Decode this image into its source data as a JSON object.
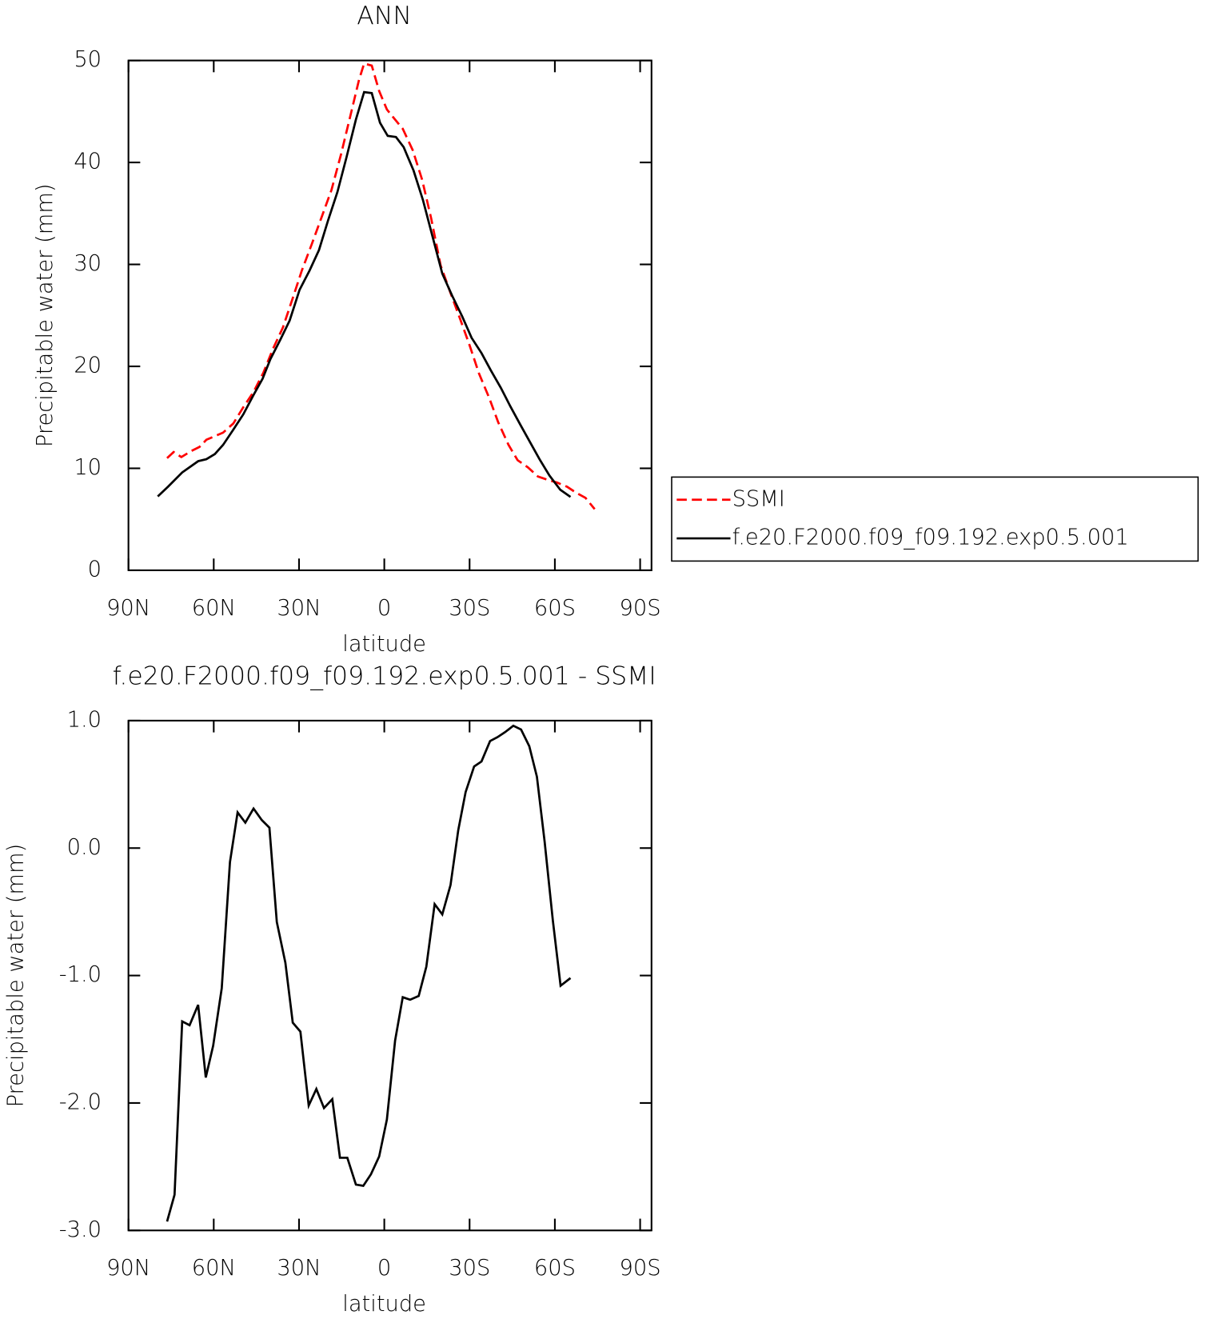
{
  "chart_data": [
    {
      "type": "line",
      "title": "ANN",
      "xlabel": "latitude",
      "ylabel": "Precipitable water (mm)",
      "xlim": [
        90,
        -94
      ],
      "ylim": [
        0,
        50
      ],
      "xticks": [
        {
          "value": 90,
          "label": "90N"
        },
        {
          "value": 60,
          "label": "60N"
        },
        {
          "value": 30,
          "label": "30N"
        },
        0,
        {
          "value": -30,
          "label": "30S"
        },
        {
          "value": -60,
          "label": "60S"
        },
        {
          "value": -90,
          "label": "90S"
        }
      ],
      "yticks": [
        0,
        10,
        20,
        30,
        40,
        50
      ],
      "legend": "outside-right",
      "series": [
        {
          "name": "SSMI",
          "color": "#ff0000",
          "dashed": true,
          "x": [
            76.4,
            74.1,
            71.4,
            67.9,
            65.0,
            62.6,
            59.3,
            56.7,
            53.1,
            49.6,
            46.0,
            42.5,
            39.2,
            35.7,
            32.2,
            29.0,
            25.5,
            22.1,
            18.6,
            15.3,
            12.1,
            8.9,
            7.1,
            4.4,
            1.8,
            -0.9,
            -3.8,
            -6.5,
            -10.0,
            -13.3,
            -16.5,
            -19.8,
            -23.3,
            -26.6,
            -30.1,
            -33.3,
            -36.9,
            -40.1,
            -43.7,
            -46.9,
            -50.5,
            -54.0,
            -57.2,
            -60.8,
            -64.3,
            -67.5,
            -70.8,
            -74.0
          ],
          "values": [
            11.0,
            11.6,
            11.1,
            11.7,
            12.1,
            12.8,
            13.2,
            13.5,
            14.4,
            16.0,
            17.5,
            19.4,
            21.7,
            23.8,
            26.7,
            29.4,
            32.0,
            34.6,
            37.3,
            40.7,
            44.4,
            48.1,
            49.7,
            49.5,
            47.0,
            45.2,
            44.2,
            43.3,
            41.2,
            38.3,
            34.5,
            29.9,
            27.2,
            24.7,
            22.0,
            19.3,
            16.9,
            14.5,
            12.3,
            10.8,
            10.1,
            9.2,
            8.9,
            8.6,
            8.2,
            7.6,
            7.1,
            6.0
          ]
        },
        {
          "name": "f.e20.F2000.f09_f09.192.exp0.5.001",
          "color": "#000000",
          "dashed": false,
          "x": [
            79.7,
            76.1,
            71.1,
            65.5,
            62.6,
            59.6,
            56.7,
            53.1,
            49.6,
            46.0,
            42.8,
            40.1,
            36.6,
            33.3,
            29.8,
            26.3,
            23.0,
            19.8,
            16.5,
            13.3,
            10.0,
            7.1,
            4.4,
            1.5,
            -1.2,
            -4.1,
            -6.8,
            -10.3,
            -13.6,
            -17.1,
            -20.4,
            -23.9,
            -27.4,
            -30.7,
            -34.2,
            -37.5,
            -41.0,
            -44.3,
            -47.8,
            -51.0,
            -54.6,
            -58.1,
            -61.9,
            -65.5
          ],
          "values": [
            7.25,
            8.2,
            9.6,
            10.7,
            10.9,
            11.4,
            12.3,
            13.8,
            15.3,
            17.2,
            18.8,
            20.7,
            22.6,
            24.5,
            27.5,
            29.4,
            31.4,
            34.3,
            37.1,
            40.5,
            44.2,
            46.9,
            46.8,
            43.9,
            42.6,
            42.5,
            41.5,
            39.2,
            36.3,
            32.6,
            29.1,
            26.9,
            24.9,
            22.8,
            21.3,
            19.6,
            17.9,
            16.1,
            14.3,
            12.7,
            10.9,
            9.3,
            7.9,
            7.2
          ]
        }
      ]
    },
    {
      "type": "line",
      "title": "f.e20.F2000.f09_f09.192.exp0.5.001 - SSMI",
      "xlabel": "latitude",
      "ylabel": "Precipitable water (mm)",
      "xlim": [
        90,
        -94
      ],
      "ylim": [
        -3.0,
        1.0
      ],
      "xticks": [
        {
          "value": 90,
          "label": "90N"
        },
        {
          "value": 60,
          "label": "60N"
        },
        {
          "value": 30,
          "label": "30N"
        },
        0,
        {
          "value": -30,
          "label": "30S"
        },
        {
          "value": -60,
          "label": "60S"
        },
        {
          "value": -90,
          "label": "90S"
        }
      ],
      "yticks": [
        {
          "value": -3.0,
          "label": "-3.0"
        },
        {
          "value": -2.0,
          "label": "-2.0"
        },
        {
          "value": -1.0,
          "label": "-1.0"
        },
        {
          "value": 0.0,
          "label": "0.0"
        },
        {
          "value": 1.0,
          "label": "1.0"
        }
      ],
      "series": [
        {
          "color": "#000000",
          "dashed": false,
          "x": [
            76.4,
            73.8,
            71.1,
            68.5,
            65.5,
            62.8,
            60.2,
            57.2,
            54.3,
            51.6,
            48.9,
            46.0,
            43.1,
            40.4,
            37.8,
            34.8,
            32.2,
            29.5,
            26.6,
            23.9,
            21.2,
            18.3,
            15.6,
            13.0,
            10.0,
            7.4,
            4.7,
            1.8,
            -0.9,
            -3.8,
            -6.5,
            -9.1,
            -12.1,
            -14.8,
            -17.7,
            -20.4,
            -23.3,
            -26.0,
            -28.6,
            -31.6,
            -34.2,
            -37.2,
            -39.8,
            -42.5,
            -45.4,
            -48.1,
            -51.0,
            -53.7,
            -56.4,
            -59.3,
            -62.0,
            -65.5
          ],
          "values": [
            -2.93,
            -2.72,
            -1.36,
            -1.39,
            -1.23,
            -1.8,
            -1.55,
            -1.1,
            -0.11,
            0.28,
            0.2,
            0.31,
            0.22,
            0.16,
            -0.58,
            -0.9,
            -1.37,
            -1.44,
            -2.02,
            -1.89,
            -2.04,
            -1.97,
            -2.43,
            -2.43,
            -2.64,
            -2.65,
            -2.56,
            -2.42,
            -2.13,
            -1.51,
            -1.17,
            -1.19,
            -1.16,
            -0.93,
            -0.44,
            -0.52,
            -0.29,
            0.14,
            0.44,
            0.64,
            0.68,
            0.84,
            0.87,
            0.91,
            0.96,
            0.93,
            0.8,
            0.56,
            0.05,
            -0.57,
            -1.08,
            -1.02
          ]
        }
      ]
    }
  ]
}
